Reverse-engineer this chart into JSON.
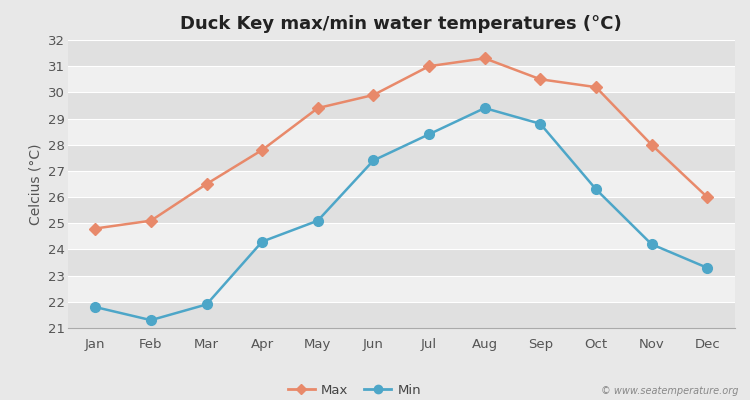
{
  "title": "Duck Key max/min water temperatures (°C)",
  "ylabel": "Celcius (°C)",
  "months": [
    "Jan",
    "Feb",
    "Mar",
    "Apr",
    "May",
    "Jun",
    "Jul",
    "Aug",
    "Sep",
    "Oct",
    "Nov",
    "Dec"
  ],
  "max_temps": [
    24.8,
    25.1,
    26.5,
    27.8,
    29.4,
    29.9,
    31.0,
    31.3,
    30.5,
    30.2,
    28.0,
    26.0
  ],
  "min_temps": [
    21.8,
    21.3,
    21.9,
    24.3,
    25.1,
    27.4,
    28.4,
    29.4,
    28.8,
    26.3,
    24.2,
    23.3
  ],
  "max_color": "#e8896a",
  "min_color": "#4da6c8",
  "bg_color": "#e8e8e8",
  "plot_bg_color": "#ebebeb",
  "stripe_color1": "#e0e0e0",
  "stripe_color2": "#f0f0f0",
  "ylim": [
    21,
    32
  ],
  "yticks": [
    21,
    22,
    23,
    24,
    25,
    26,
    27,
    28,
    29,
    30,
    31,
    32
  ],
  "grid_color": "#ffffff",
  "line_width": 1.8,
  "title_fontsize": 13,
  "axis_label_fontsize": 10,
  "tick_fontsize": 9.5,
  "legend_labels": [
    "Max",
    "Min"
  ],
  "watermark": "© www.seatemperature.org"
}
